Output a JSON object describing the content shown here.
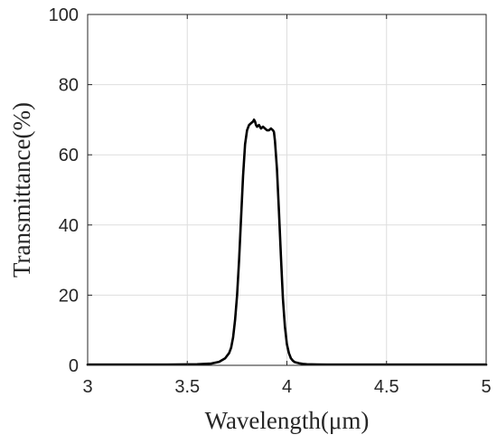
{
  "chart_data": {
    "type": "line",
    "title": "",
    "xlabel": "Wavelength(μm)",
    "ylabel": "Transmittance(%)",
    "xlim": [
      3,
      5
    ],
    "ylim": [
      0,
      100
    ],
    "grid": true,
    "xticks": [
      3,
      3.5,
      4,
      4.5,
      5
    ],
    "yticks": [
      0,
      20,
      40,
      60,
      80,
      100
    ],
    "xtick_labels": [
      "3",
      "3.5",
      "4",
      "4.5",
      "5"
    ],
    "ytick_labels": [
      "0",
      "20",
      "40",
      "60",
      "80",
      "100"
    ],
    "series": [
      {
        "color": "#000000",
        "x": [
          3.0,
          3.2,
          3.4,
          3.55,
          3.62,
          3.66,
          3.69,
          3.71,
          3.72,
          3.73,
          3.74,
          3.75,
          3.76,
          3.77,
          3.78,
          3.79,
          3.8,
          3.81,
          3.82,
          3.83,
          3.835,
          3.84,
          3.845,
          3.85,
          3.86,
          3.87,
          3.88,
          3.89,
          3.9,
          3.91,
          3.92,
          3.93,
          3.935,
          3.94,
          3.95,
          3.96,
          3.97,
          3.98,
          3.99,
          4.0,
          4.01,
          4.02,
          4.03,
          4.04,
          4.06,
          4.08,
          4.1,
          4.15,
          4.2,
          4.3,
          4.5,
          4.7,
          5.0
        ],
        "y": [
          0.2,
          0.2,
          0.2,
          0.3,
          0.5,
          1,
          2,
          3.5,
          5,
          8,
          13,
          20,
          30,
          42,
          54,
          63,
          67,
          68.5,
          69,
          69.5,
          70,
          69.5,
          68.5,
          68,
          68.5,
          67.5,
          68,
          67.5,
          67,
          67,
          67.5,
          67,
          66.5,
          64,
          56,
          44,
          31,
          19,
          11,
          6,
          3.5,
          2,
          1.3,
          0.9,
          0.6,
          0.4,
          0.3,
          0.25,
          0.2,
          0.2,
          0.2,
          0.2,
          0.2
        ]
      }
    ]
  }
}
